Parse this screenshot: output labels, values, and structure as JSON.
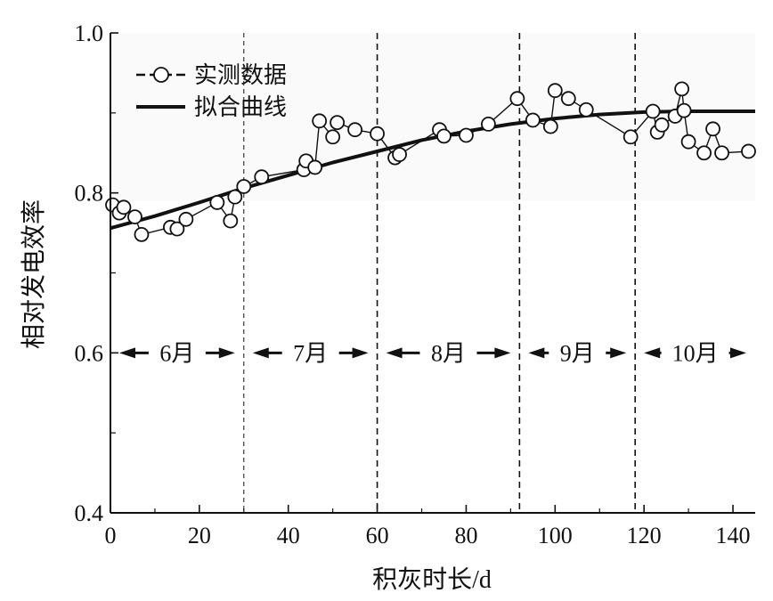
{
  "chart_data": {
    "type": "line",
    "title": "",
    "xlabel": "积灰时长/d",
    "ylabel": "相对发电效率",
    "xlim": [
      0,
      145
    ],
    "ylim": [
      0.4,
      1.0
    ],
    "x_ticks": [
      0,
      20,
      40,
      60,
      80,
      100,
      120,
      140
    ],
    "x_tick_labels": [
      "0",
      "20",
      "40",
      "60",
      "80",
      "100",
      "120",
      "140"
    ],
    "y_ticks": [
      0.4,
      0.6,
      0.8,
      1.0
    ],
    "y_tick_labels": [
      "0.4",
      "0.6",
      "0.8",
      "1.0"
    ],
    "y_minor_ticks": [
      0.5,
      0.7,
      0.9
    ],
    "grid": false,
    "legend": {
      "position": "top-left",
      "entries": [
        {
          "label": "实测数据",
          "style": "dashed-line-circle-markers"
        },
        {
          "label": "拟合曲线",
          "style": "solid-thick-line"
        }
      ]
    },
    "series": [
      {
        "name": "实测数据",
        "marker": "open-circle",
        "line": "solid-thin",
        "x": [
          0.5,
          2,
          3,
          5.5,
          7,
          13.5,
          15,
          17,
          24,
          27,
          28,
          30,
          34,
          43.5,
          44,
          46,
          47,
          50,
          51,
          55,
          60,
          64,
          65,
          74,
          75,
          80,
          85,
          91.5,
          95,
          99,
          100,
          103,
          107,
          117,
          122,
          123,
          124,
          127,
          128.5,
          129,
          130,
          133.5,
          135.5,
          137.5,
          143.5
        ],
        "y": [
          0.785,
          0.775,
          0.782,
          0.77,
          0.748,
          0.757,
          0.755,
          0.767,
          0.788,
          0.765,
          0.795,
          0.808,
          0.82,
          0.829,
          0.84,
          0.832,
          0.89,
          0.87,
          0.888,
          0.879,
          0.874,
          0.844,
          0.848,
          0.879,
          0.871,
          0.872,
          0.886,
          0.918,
          0.891,
          0.883,
          0.928,
          0.918,
          0.904,
          0.87,
          0.902,
          0.876,
          0.885,
          0.896,
          0.93,
          0.903,
          0.864,
          0.85,
          0.88,
          0.85,
          0.852
        ]
      },
      {
        "name": "拟合曲线",
        "marker": "none",
        "line": "solid-thick",
        "x": [
          0,
          10,
          20,
          30,
          40,
          50,
          60,
          70,
          80,
          90,
          100,
          110,
          120,
          130,
          140,
          145
        ],
        "y": [
          0.756,
          0.771,
          0.788,
          0.806,
          0.822,
          0.838,
          0.852,
          0.866,
          0.877,
          0.886,
          0.893,
          0.898,
          0.901,
          0.902,
          0.902,
          0.902
        ]
      }
    ],
    "dividers": [
      {
        "x": 30,
        "style": "thin-dashed"
      },
      {
        "x": 60,
        "style": "dashed"
      },
      {
        "x": 92,
        "style": "dashed"
      },
      {
        "x": 118,
        "style": "dashed"
      }
    ],
    "month_annotations": [
      {
        "label": "6月",
        "x_start": 0,
        "x_end": 30
      },
      {
        "label": "7月",
        "x_start": 30,
        "x_end": 60
      },
      {
        "label": "8月",
        "x_start": 60,
        "x_end": 92
      },
      {
        "label": "9月",
        "x_start": 92,
        "x_end": 118
      },
      {
        "label": "10月",
        "x_start": 118,
        "x_end": 145
      }
    ],
    "month_annotation_y": 0.6
  },
  "colors": {
    "ink": "#111111",
    "background": "#ffffff",
    "marker_fill": "#ffffff"
  }
}
